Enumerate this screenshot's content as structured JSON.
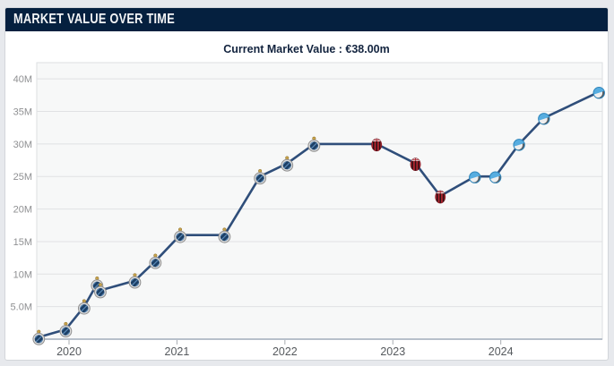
{
  "header": {
    "title": "MARKET VALUE OVER TIME"
  },
  "subtitle": {
    "text": "Current Market Value : €38.00m",
    "current_value": "€38.00m"
  },
  "colors": {
    "header_bg": "#05203f",
    "header_text": "#f3f4f6",
    "card_bg": "#ffffff",
    "page_bg": "#e7e9ed",
    "plot_bg": "#f7f8f8",
    "gridline": "#e0e1e3",
    "plot_border": "#dcdfe2",
    "baseline": "#b7c0cb",
    "line": "#2f4e7a",
    "crest_navy": "#1d4066",
    "crest_red": "#b2252f",
    "crest_lightblue": "#57ade0"
  },
  "chart_data": {
    "type": "line",
    "title": "MARKET VALUE OVER TIME",
    "subtitle": "Current Market Value : €38.00m",
    "unit": "€ million",
    "grid": "horizontal",
    "legend": false,
    "xlim": [
      2019.701,
      2024.941
    ],
    "ylim": [
      0,
      42.5
    ],
    "y_ticks": [
      {
        "value": 40,
        "label": "40M"
      },
      {
        "value": 35,
        "label": "35M"
      },
      {
        "value": 30,
        "label": "30M"
      },
      {
        "value": 25,
        "label": "25M"
      },
      {
        "value": 20,
        "label": "20M"
      },
      {
        "value": 15,
        "label": "15M"
      },
      {
        "value": 10,
        "label": "10M"
      },
      {
        "value": 5,
        "label": "5.0M"
      }
    ],
    "x_ticks": [
      {
        "value": 2020,
        "label": "2020"
      },
      {
        "value": 2021,
        "label": "2021"
      },
      {
        "value": 2022,
        "label": "2022"
      },
      {
        "value": 2023,
        "label": "2023"
      },
      {
        "value": 2024,
        "label": "2024"
      }
    ],
    "series": [
      {
        "name": "Market value",
        "color": "#2f4e7a",
        "points": [
          {
            "x": 2019.72,
            "date": "Oct 2019",
            "y": 0.3,
            "icon": "crest-navy"
          },
          {
            "x": 2019.97,
            "date": "Dec 2019",
            "y": 1.5,
            "icon": "crest-navy"
          },
          {
            "x": 2020.14,
            "date": "Feb 2020",
            "y": 5.0,
            "icon": "crest-navy"
          },
          {
            "x": 2020.26,
            "date": "Apr 2020",
            "y": 8.5,
            "icon": "crest-navy"
          },
          {
            "x": 2020.29,
            "date": "Apr 2020",
            "y": 7.5,
            "icon": "crest-navy"
          },
          {
            "x": 2020.61,
            "date": "Aug 2020",
            "y": 9.0,
            "icon": "crest-navy"
          },
          {
            "x": 2020.8,
            "date": "Oct 2020",
            "y": 12.0,
            "icon": "crest-navy"
          },
          {
            "x": 2021.03,
            "date": "Jan 2021",
            "y": 16.0,
            "icon": "crest-navy"
          },
          {
            "x": 2021.44,
            "date": "Jun 2021",
            "y": 16.0,
            "icon": "crest-navy"
          },
          {
            "x": 2021.77,
            "date": "Oct 2021",
            "y": 25.0,
            "icon": "crest-navy"
          },
          {
            "x": 2022.02,
            "date": "Jan 2022",
            "y": 27.0,
            "icon": "crest-navy"
          },
          {
            "x": 2022.27,
            "date": "Apr 2022",
            "y": 30.0,
            "icon": "crest-navy"
          },
          {
            "x": 2022.85,
            "date": "Nov 2022",
            "y": 30.0,
            "icon": "crest-red"
          },
          {
            "x": 2023.21,
            "date": "Mar 2023",
            "y": 27.0,
            "icon": "crest-red"
          },
          {
            "x": 2023.44,
            "date": "Jun 2023",
            "y": 22.0,
            "icon": "crest-red"
          },
          {
            "x": 2023.76,
            "date": "Oct 2023",
            "y": 25.0,
            "icon": "crest-lightblue"
          },
          {
            "x": 2023.95,
            "date": "Dec 2023",
            "y": 25.0,
            "icon": "crest-lightblue"
          },
          {
            "x": 2024.17,
            "date": "Mar 2024",
            "y": 30.0,
            "icon": "crest-lightblue"
          },
          {
            "x": 2024.4,
            "date": "May 2024",
            "y": 34.0,
            "icon": "crest-lightblue"
          },
          {
            "x": 2024.91,
            "date": "Dec 2024",
            "y": 38.0,
            "icon": "crest-lightblue"
          }
        ]
      }
    ]
  }
}
